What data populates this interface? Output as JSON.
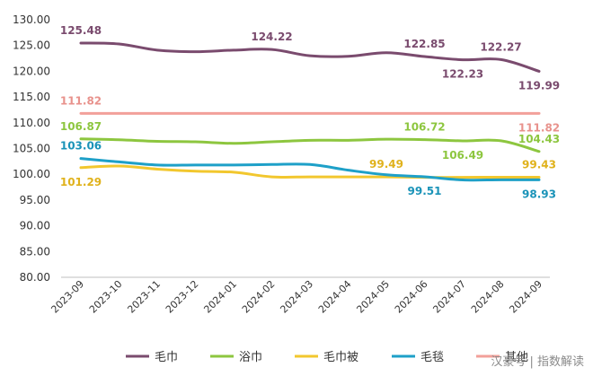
{
  "chart_data": {
    "type": "line",
    "title": "",
    "xlabel": "",
    "ylabel": "",
    "categories": [
      "2023-09",
      "2023-10",
      "2023-11",
      "2023-12",
      "2024-01",
      "2024-02",
      "2024-03",
      "2024-04",
      "2024-05",
      "2024-06",
      "2024-07",
      "2024-08",
      "2024-09"
    ],
    "yticks": [
      "130.00",
      "125.00",
      "120.00",
      "115.00",
      "110.00",
      "105.00",
      "100.00",
      "95.00",
      "90.00",
      "85.00",
      "80.00"
    ],
    "ylim": [
      80,
      130
    ],
    "grid": false,
    "legend_position": "bottom",
    "series": [
      {
        "name": "毛巾",
        "color": "#7a4b6e",
        "values": [
          125.48,
          125.3,
          124.1,
          123.8,
          124.1,
          124.22,
          123.0,
          122.9,
          123.6,
          122.85,
          122.23,
          122.27,
          119.99
        ]
      },
      {
        "name": "浴巾",
        "color": "#8dc63f",
        "values": [
          106.87,
          106.7,
          106.4,
          106.3,
          106.0,
          106.3,
          106.6,
          106.6,
          106.8,
          106.72,
          106.49,
          106.5,
          104.43
        ]
      },
      {
        "name": "毛巾被",
        "color": "#f2c72e",
        "values": [
          101.29,
          101.6,
          101.0,
          100.6,
          100.4,
          99.5,
          99.5,
          99.5,
          99.49,
          99.4,
          99.4,
          99.43,
          99.43
        ]
      },
      {
        "name": "毛毯",
        "color": "#1ea0c8",
        "values": [
          103.06,
          102.4,
          101.8,
          101.8,
          101.8,
          101.9,
          101.9,
          100.8,
          99.9,
          99.51,
          98.9,
          98.93,
          98.93
        ]
      },
      {
        "name": "其他",
        "color": "#f2a09a",
        "values": [
          111.82,
          111.82,
          111.82,
          111.82,
          111.82,
          111.82,
          111.82,
          111.82,
          111.82,
          111.82,
          111.82,
          111.82,
          111.82
        ]
      }
    ],
    "annotations": [
      {
        "series": "毛巾",
        "index": 0,
        "text": "125.48",
        "color": "#7a4b6e",
        "pos": "above"
      },
      {
        "series": "毛巾",
        "index": 5,
        "text": "124.22",
        "color": "#7a4b6e",
        "pos": "above"
      },
      {
        "series": "毛巾",
        "index": 9,
        "text": "122.85",
        "color": "#7a4b6e",
        "pos": "above"
      },
      {
        "series": "毛巾",
        "index": 10,
        "text": "122.23",
        "color": "#7a4b6e",
        "pos": "below"
      },
      {
        "series": "毛巾",
        "index": 11,
        "text": "122.27",
        "color": "#7a4b6e",
        "pos": "above"
      },
      {
        "series": "毛巾",
        "index": 12,
        "text": "119.99",
        "color": "#7a4b6e",
        "pos": "below"
      },
      {
        "series": "其他",
        "index": 0,
        "text": "111.82",
        "color": "#e8928c",
        "pos": "above"
      },
      {
        "series": "其他",
        "index": 12,
        "text": "111.82",
        "color": "#e8928c",
        "pos": "below"
      },
      {
        "series": "浴巾",
        "index": 0,
        "text": "106.87",
        "color": "#8dc63f",
        "pos": "above"
      },
      {
        "series": "浴巾",
        "index": 9,
        "text": "106.72",
        "color": "#8dc63f",
        "pos": "above"
      },
      {
        "series": "浴巾",
        "index": 10,
        "text": "106.49",
        "color": "#8dc63f",
        "pos": "below"
      },
      {
        "series": "浴巾",
        "index": 12,
        "text": "104.43",
        "color": "#8dc63f",
        "pos": "above"
      },
      {
        "series": "毛毯",
        "index": 0,
        "text": "103.06",
        "color": "#1a93b8",
        "pos": "above"
      },
      {
        "series": "毛毯",
        "index": 9,
        "text": "99.51",
        "color": "#1a93b8",
        "pos": "below"
      },
      {
        "series": "毛毯",
        "index": 12,
        "text": "98.93",
        "color": "#1a93b8",
        "pos": "below"
      },
      {
        "series": "毛巾被",
        "index": 0,
        "text": "101.29",
        "color": "#e0b21c",
        "pos": "below"
      },
      {
        "series": "毛巾被",
        "index": 8,
        "text": "99.49",
        "color": "#e0b21c",
        "pos": "above"
      },
      {
        "series": "毛巾被",
        "index": 12,
        "text": "99.43",
        "color": "#e0b21c",
        "pos": "above"
      }
    ]
  },
  "watermark": "汉豪号 | 指数解读"
}
